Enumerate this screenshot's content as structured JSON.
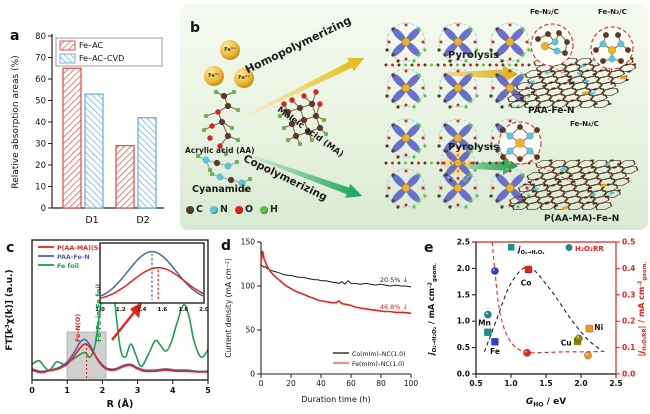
{
  "figure": {
    "panel_labels": {
      "a": "a",
      "b": "b",
      "c": "c",
      "d": "d",
      "e": "e"
    }
  },
  "panel_b": {
    "fe_ion": "Fe³⁺",
    "molecules": {
      "acrylic": "Acrylic acid (AA)",
      "maleic": "Maleic acid (MA)",
      "cyanamide": "Cyanamide"
    },
    "routes": {
      "homo": "Homopolymerizing",
      "co": "Copolymerizing"
    },
    "pyrolysis": "Pyrolysis",
    "products": {
      "top": "PAA-Fe-N",
      "bottom": "P(AA-MA)-Fe-N"
    },
    "sites": {
      "top_left": "Fe-N₂/C",
      "top_right": "Fe-N₃/C",
      "bottom": "Fe-N₄/C"
    },
    "atom_legend": [
      {
        "s": "C",
        "color": "#5a3a22"
      },
      {
        "s": "N",
        "color": "#58c8dc"
      },
      {
        "s": "O",
        "color": "#e3201b"
      },
      {
        "s": "H",
        "color": "#6abf45"
      }
    ]
  },
  "chart_data": [
    {
      "panel": "a",
      "type": "bar",
      "categories": [
        "D1",
        "D2"
      ],
      "series": [
        {
          "name": "Fe–AC",
          "values": [
            65,
            29
          ],
          "color": "#e8524f",
          "hatch": "fwd"
        },
        {
          "name": "Fe–AC–CVD",
          "values": [
            53,
            42
          ],
          "color": "#6fb0dd",
          "hatch": "bwd"
        }
      ],
      "ylabel": "Relative absorption areas (%)",
      "ylim": [
        0,
        80
      ],
      "yticks": [
        0,
        10,
        20,
        30,
        40,
        50,
        60,
        70,
        80
      ]
    },
    {
      "panel": "c",
      "type": "line",
      "xlabel": "R (Å)",
      "ylabel": "FT[k³χ(k)] (a.u.)",
      "xlim": [
        0,
        5
      ],
      "xticks": [
        0,
        1,
        2,
        3,
        4,
        5
      ],
      "series": [
        {
          "name": "P(AA-MA)(5-1)-Fe-N",
          "color": "#e8211d",
          "points": [
            [
              0,
              0.05
            ],
            [
              0.25,
              0.03
            ],
            [
              0.5,
              0.045
            ],
            [
              0.75,
              0.06
            ],
            [
              1.0,
              0.1
            ],
            [
              1.2,
              0.17
            ],
            [
              1.4,
              0.25
            ],
            [
              1.55,
              0.27
            ],
            [
              1.7,
              0.22
            ],
            [
              1.9,
              0.12
            ],
            [
              2.1,
              0.06
            ],
            [
              2.35,
              0.05
            ],
            [
              2.6,
              0.08
            ],
            [
              2.8,
              0.09
            ],
            [
              3.0,
              0.06
            ],
            [
              3.2,
              0.04
            ],
            [
              3.5,
              0.04
            ],
            [
              3.8,
              0.05
            ],
            [
              4.1,
              0.04
            ],
            [
              4.4,
              0.04
            ],
            [
              4.7,
              0.035
            ],
            [
              5,
              0.035
            ]
          ]
        },
        {
          "name": "PAA-Fe-N",
          "color": "#4f63b4",
          "points": [
            [
              0,
              0.06
            ],
            [
              0.25,
              0.04
            ],
            [
              0.5,
              0.05
            ],
            [
              0.75,
              0.07
            ],
            [
              1.0,
              0.12
            ],
            [
              1.2,
              0.2
            ],
            [
              1.35,
              0.28
            ],
            [
              1.5,
              0.31
            ],
            [
              1.65,
              0.26
            ],
            [
              1.85,
              0.15
            ],
            [
              2.1,
              0.07
            ],
            [
              2.35,
              0.06
            ],
            [
              2.6,
              0.09
            ],
            [
              2.8,
              0.1
            ],
            [
              3.0,
              0.07
            ],
            [
              3.2,
              0.05
            ],
            [
              3.5,
              0.05
            ],
            [
              3.8,
              0.06
            ],
            [
              4.1,
              0.05
            ],
            [
              4.4,
              0.05
            ],
            [
              4.7,
              0.04
            ],
            [
              5,
              0.04
            ]
          ]
        },
        {
          "name": "Fe foil",
          "color": "#1c9e4f",
          "points": [
            [
              0,
              0.1
            ],
            [
              0.2,
              0.13
            ],
            [
              0.35,
              0.08
            ],
            [
              0.5,
              0.05
            ],
            [
              0.7,
              0.12
            ],
            [
              0.9,
              0.1
            ],
            [
              1.1,
              0.13
            ],
            [
              1.3,
              0.17
            ],
            [
              1.5,
              0.2
            ],
            [
              1.65,
              0.16
            ],
            [
              1.8,
              0.28
            ],
            [
              2.0,
              0.7
            ],
            [
              2.15,
              0.95
            ],
            [
              2.3,
              0.75
            ],
            [
              2.5,
              0.25
            ],
            [
              2.65,
              0.16
            ],
            [
              2.8,
              0.27
            ],
            [
              2.95,
              0.18
            ],
            [
              3.1,
              0.08
            ],
            [
              3.3,
              0.18
            ],
            [
              3.5,
              0.3
            ],
            [
              3.65,
              0.26
            ],
            [
              3.8,
              0.21
            ],
            [
              3.95,
              0.28
            ],
            [
              4.1,
              0.43
            ],
            [
              4.3,
              0.6
            ],
            [
              4.45,
              0.52
            ],
            [
              4.6,
              0.3
            ],
            [
              4.8,
              0.16
            ],
            [
              5,
              0.22
            ]
          ]
        }
      ],
      "annotations": {
        "fe_no": "Fe-N(O)",
        "fe_fe": "Fe-Fe in Fe foil"
      },
      "peak_marker": 1.55,
      "inset": {
        "xlim": [
          1.0,
          2.0
        ],
        "xticks": [
          "1.0",
          "1.2",
          "1.4",
          "1.6",
          "1.8",
          "2.0"
        ],
        "series": [
          {
            "color": "#4f63b4",
            "center": 1.5,
            "sigma": 0.23,
            "amp": 0.95
          },
          {
            "color": "#e8211d",
            "center": 1.56,
            "sigma": 0.25,
            "amp": 0.64
          }
        ]
      }
    },
    {
      "panel": "d",
      "type": "line",
      "xlabel": "Duration time (h)",
      "ylabel": "Current density (mA cm⁻²)",
      "xlim": [
        0,
        100
      ],
      "ylim": [
        0,
        150
      ],
      "xticks": [
        0,
        20,
        40,
        60,
        80,
        100
      ],
      "yticks": [
        0,
        50,
        100,
        150
      ],
      "series": [
        {
          "name": "Co(mIm)–NC(1.0)",
          "color": "#1a1a1a",
          "legend_color": "#1a1a1a",
          "annotation": "20.5% ↓",
          "points": [
            [
              0,
              124
            ],
            [
              1,
              123
            ],
            [
              2,
              121
            ],
            [
              3,
              122
            ],
            [
              4,
              120
            ],
            [
              6,
              118
            ],
            [
              8,
              117
            ],
            [
              10,
              116
            ],
            [
              12,
              115
            ],
            [
              15,
              113
            ],
            [
              18,
              112
            ],
            [
              20,
              112
            ],
            [
              22,
              111
            ],
            [
              25,
              110
            ],
            [
              28,
              110
            ],
            [
              30,
              109
            ],
            [
              33,
              108
            ],
            [
              36,
              107
            ],
            [
              38,
              107
            ],
            [
              40,
              106
            ],
            [
              43,
              106
            ],
            [
              46,
              105
            ],
            [
              48,
              104
            ],
            [
              50,
              104
            ],
            [
              52,
              103
            ],
            [
              54,
              105
            ],
            [
              56,
              102
            ],
            [
              58,
              106
            ],
            [
              60,
              103
            ],
            [
              63,
              103
            ],
            [
              66,
              102
            ],
            [
              70,
              103
            ],
            [
              73,
              102
            ],
            [
              76,
              101
            ],
            [
              80,
              102
            ],
            [
              83,
              101
            ],
            [
              86,
              100
            ],
            [
              90,
              101
            ],
            [
              93,
              100
            ],
            [
              96,
              100
            ],
            [
              100,
              99
            ]
          ]
        },
        {
          "name": "Fe(mIm)–NC(1.0)",
          "color": "#e8211d",
          "legend_color": "#f28b8b",
          "annotation": "46.8% ↓",
          "points": [
            [
              0,
              126
            ],
            [
              0.5,
              133
            ],
            [
              1,
              140
            ],
            [
              1.5,
              136
            ],
            [
              2,
              131
            ],
            [
              3,
              127
            ],
            [
              4,
              123
            ],
            [
              5,
              120
            ],
            [
              6,
              117
            ],
            [
              8,
              113
            ],
            [
              10,
              110
            ],
            [
              12,
              107
            ],
            [
              14,
              104
            ],
            [
              16,
              101
            ],
            [
              18,
              99
            ],
            [
              20,
              97
            ],
            [
              23,
              94
            ],
            [
              26,
              92
            ],
            [
              29,
              90
            ],
            [
              32,
              88
            ],
            [
              35,
              86
            ],
            [
              38,
              84
            ],
            [
              41,
              83
            ],
            [
              44,
              82
            ],
            [
              47,
              81
            ],
            [
              50,
              81
            ],
            [
              52,
              83
            ],
            [
              54,
              80
            ],
            [
              57,
              79
            ],
            [
              60,
              78
            ],
            [
              63,
              76
            ],
            [
              66,
              75
            ],
            [
              70,
              74
            ],
            [
              74,
              73
            ],
            [
              78,
              72
            ],
            [
              82,
              71
            ],
            [
              86,
              71
            ],
            [
              90,
              70
            ],
            [
              95,
              70
            ],
            [
              100,
              69
            ]
          ]
        }
      ]
    },
    {
      "panel": "e",
      "type": "scatter",
      "xlim": [
        0.5,
        2.5
      ],
      "xticks": [
        0.5,
        1.0,
        1.5,
        2.0,
        2.5
      ],
      "ylim_left": [
        0,
        2.5
      ],
      "yticks_left": [
        0.0,
        0.5,
        1.0,
        1.5,
        2.0,
        2.5
      ],
      "ylim_right": [
        0,
        0.5
      ],
      "yticks_right": [
        0.0,
        0.1,
        0.2,
        0.3,
        0.4,
        0.5
      ],
      "xlabel_segs": [
        {
          "t": "G",
          "i": true
        },
        {
          "t": "HO",
          "sub": true
        },
        {
          "t": " / eV"
        }
      ],
      "ylabel_left_segs": [
        {
          "t": "j",
          "i": true
        },
        {
          "t": "O₂→H₂O₂",
          "sub": true
        },
        {
          "t": " / mA cm"
        },
        {
          "t": "-2",
          "sup": true
        },
        {
          "t": "geom.",
          "sub": true
        }
      ],
      "ylabel_right_segs": [
        {
          "t": "|"
        },
        {
          "t": "j",
          "i": true
        },
        {
          "t": "H₂O₂RR",
          "sub": true
        },
        {
          "t": "| / mA cm"
        },
        {
          "t": "-2",
          "sup": true
        },
        {
          "t": "geom.",
          "sub": true
        }
      ],
      "legend": {
        "marker_color": "#17918a",
        "square_label_segs": [
          {
            "t": "j",
            "i": true
          },
          {
            "t": "O₂→H₂O₂",
            "sub": true
          }
        ],
        "circle_label": "H₂O₂RR",
        "circle_label_color": "#e8211d"
      },
      "points": [
        {
          "element": "Mn",
          "color": "#17918a",
          "square": [
            0.67,
            0.79
          ],
          "circle": [
            0.67,
            0.225
          ],
          "label_pos": [
            0.53,
            0.92
          ]
        },
        {
          "element": "Fe",
          "color": "#2b3fd6",
          "square": [
            0.77,
            0.61
          ],
          "circle": [
            0.77,
            0.39
          ],
          "label_pos": [
            0.7,
            0.38
          ]
        },
        {
          "element": "Co",
          "color": "#e8211d",
          "square": [
            1.25,
            1.98
          ],
          "circle": [
            1.23,
            0.08
          ],
          "label_pos": [
            1.14,
            1.68
          ]
        },
        {
          "element": "Cu",
          "color": "#8e8e00",
          "square": [
            1.95,
            0.62
          ],
          "circle": [
            1.97,
            0.135
          ],
          "label_pos": [
            1.71,
            0.54
          ]
        },
        {
          "element": "Ni",
          "color": "#ff9015",
          "square": [
            2.12,
            0.86
          ],
          "circle": [
            2.1,
            0.07
          ],
          "label_pos": [
            2.19,
            0.83
          ]
        }
      ],
      "volcano_black": [
        [
          0.62,
          0.42
        ],
        [
          0.8,
          1.05
        ],
        [
          1.0,
          1.72
        ],
        [
          1.25,
          2.02
        ],
        [
          1.55,
          1.62
        ],
        [
          1.85,
          1.05
        ],
        [
          2.1,
          0.65
        ],
        [
          2.3,
          0.44
        ]
      ],
      "decay_red": [
        [
          0.73,
          0.5
        ],
        [
          0.77,
          0.39
        ],
        [
          0.83,
          0.25
        ],
        [
          0.92,
          0.16
        ],
        [
          1.05,
          0.105
        ],
        [
          1.23,
          0.082
        ],
        [
          1.5,
          0.082
        ],
        [
          1.8,
          0.084
        ],
        [
          2.1,
          0.084
        ],
        [
          2.35,
          0.086
        ]
      ]
    }
  ]
}
